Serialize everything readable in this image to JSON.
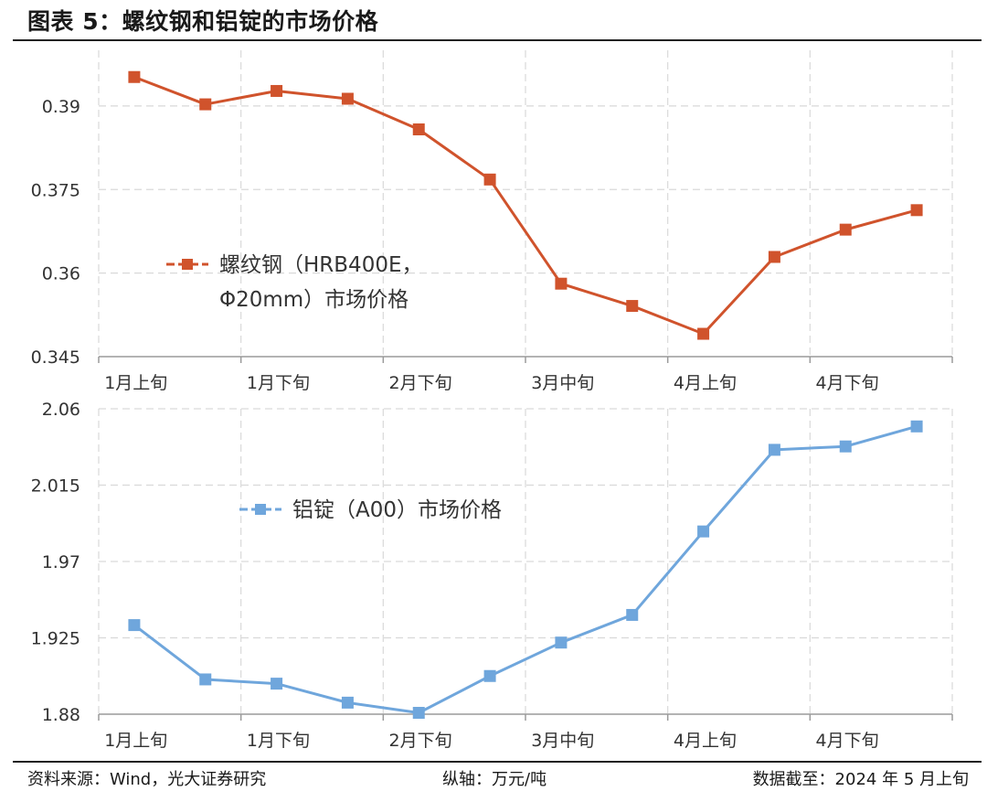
{
  "header": {
    "title": "图表 5：螺纹钢和铝锭的市场价格"
  },
  "footer": {
    "source": "资料来源：Wind，光大证券研究",
    "unit": "纵轴：万元/吨",
    "cutoff": "数据截至：2024 年 5 月上旬"
  },
  "chart_data": [
    {
      "type": "line",
      "x_tick_labels": [
        "1月上旬",
        "1月下旬",
        "2月下旬",
        "3月中旬",
        "4月上旬",
        "4月下旬"
      ],
      "ylim": [
        0.345,
        0.4
      ],
      "y_ticks": [
        "0.39",
        "0.375",
        "0.36",
        "0.345"
      ],
      "grid": true,
      "legend_position": "center-left",
      "series": [
        {
          "name": "螺纹钢（HRB400E，Φ20mm）市场价格",
          "legend_lines": [
            "螺纹钢（HRB400E，",
            "Φ20mm）市场价格"
          ],
          "color": "#D0532C",
          "values": [
            0.3952,
            0.3903,
            0.3927,
            0.3913,
            0.3858,
            0.3768,
            0.3581,
            0.3541,
            0.3491,
            0.3629,
            0.3678,
            0.3713
          ]
        }
      ]
    },
    {
      "type": "line",
      "x_tick_labels": [
        "1月上旬",
        "1月下旬",
        "2月下旬",
        "3月中旬",
        "4月上旬",
        "4月下旬"
      ],
      "ylim": [
        1.88,
        2.06
      ],
      "y_ticks": [
        "2.06",
        "2.015",
        "1.97",
        "1.925",
        "1.88"
      ],
      "grid": true,
      "legend_position": "upper-left",
      "series": [
        {
          "name": "铝锭（A00）市场价格",
          "color": "#6FA6DC",
          "values": [
            1.9325,
            1.9005,
            1.898,
            1.8868,
            1.8808,
            1.9025,
            1.9222,
            1.9385,
            1.9877,
            2.0358,
            2.0378,
            2.0496
          ]
        }
      ]
    }
  ]
}
